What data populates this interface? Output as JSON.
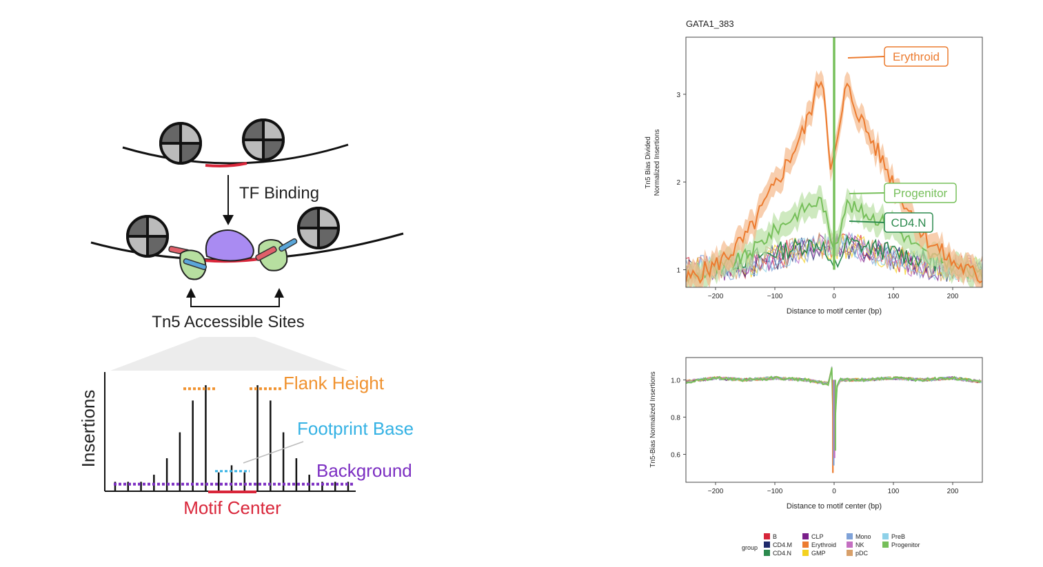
{
  "colors": {
    "erythroid": "#ec7b2f",
    "erythroid_band": "#f5b98c",
    "progenitor": "#76bf5a",
    "progenitor_band": "#b9e0a4",
    "cd4n": "#2c8a4e",
    "motif_red": "#d9263a",
    "tf_purple": "#a98bf2",
    "tn5_green": "#b7dfa0",
    "flank_orange": "#f0922f",
    "footprint_blue": "#35b2e4",
    "background_purple": "#7c2fc2"
  },
  "schematic": {
    "tf_binding_label": "TF Binding",
    "tn5_label": "Tn5 Accessible Sites",
    "insertions_label": "Insertions",
    "flank_height_label": "Flank Height",
    "footprint_base_label": "Footprint Base",
    "background_label": "Background",
    "motif_center_label": "Motif Center",
    "bar_heights": [
      0.08,
      0.08,
      0.08,
      0.14,
      0.28,
      0.5,
      0.77,
      0.9,
      0.16,
      0.22,
      0.16,
      0.9,
      0.77,
      0.5,
      0.28,
      0.14,
      0.08,
      0.08,
      0.08
    ],
    "flank_level": 0.87,
    "footprint_level": 0.17,
    "background_level": 0.06
  },
  "chart_data": [
    {
      "type": "line",
      "title": "GATA1_383",
      "xlabel": "Distance to motif center (bp)",
      "ylabel_line1": "Tn5 Bias Divided",
      "ylabel_line2": "Normalized Insertions",
      "xlim": [
        -250,
        250
      ],
      "ylim": [
        0.8,
        3.65
      ],
      "xticks": [
        -200,
        -100,
        0,
        100,
        200
      ],
      "yticks": [
        1,
        2,
        3
      ],
      "annotations": [
        "Erythroid",
        "Progenitor",
        "CD4.N"
      ],
      "series": [
        {
          "name": "Erythroid",
          "x": [
            -250,
            -200,
            -150,
            -100,
            -50,
            -20,
            -5,
            5,
            20,
            50,
            100,
            150,
            200,
            250
          ],
          "values": [
            0.88,
            1.05,
            1.35,
            1.95,
            2.6,
            3.25,
            2.15,
            2.4,
            3.1,
            2.65,
            2.0,
            1.4,
            1.08,
            0.9
          ]
        },
        {
          "name": "Progenitor",
          "x": [
            -250,
            -200,
            -150,
            -100,
            -50,
            -20,
            -5,
            5,
            20,
            50,
            100,
            150,
            200,
            250
          ],
          "values": [
            0.9,
            1.0,
            1.15,
            1.45,
            1.7,
            1.8,
            1.3,
            1.35,
            1.75,
            1.65,
            1.5,
            1.2,
            1.05,
            0.92
          ]
        },
        {
          "name": "CD4.N",
          "x": [
            -250,
            -200,
            -150,
            -100,
            -50,
            -20,
            -5,
            5,
            20,
            50,
            100,
            150,
            200,
            250
          ],
          "values": [
            0.95,
            1.05,
            1.12,
            1.2,
            1.28,
            1.3,
            1.0,
            1.05,
            1.3,
            1.27,
            1.2,
            1.12,
            1.05,
            0.95
          ]
        }
      ]
    },
    {
      "type": "line",
      "xlabel": "Distance to motif center (bp)",
      "ylabel": "Tn5-Bias Normalized Insertions",
      "xlim": [
        -250,
        250
      ],
      "ylim": [
        0.45,
        1.12
      ],
      "xticks": [
        -200,
        -100,
        0,
        100,
        200
      ],
      "yticks": [
        0.6,
        0.8,
        1.0
      ],
      "series": [
        {
          "name": "Progenitor",
          "x": [
            -250,
            -200,
            -150,
            -100,
            -50,
            -10,
            -3,
            0,
            3,
            10,
            50,
            100,
            150,
            200,
            250
          ],
          "values": [
            0.99,
            1.01,
            1.0,
            1.01,
            1.0,
            0.98,
            1.08,
            0.5,
            0.95,
            1.0,
            1.0,
            1.01,
            1.0,
            1.01,
            0.99
          ]
        }
      ]
    }
  ],
  "legend": {
    "title": "group",
    "items": [
      {
        "label": "B",
        "color": "#d7263a"
      },
      {
        "label": "CD4.M",
        "color": "#1f2a6b"
      },
      {
        "label": "CD4.N",
        "color": "#2c8a4e"
      },
      {
        "label": "CLP",
        "color": "#7a1f8a"
      },
      {
        "label": "Erythroid",
        "color": "#ec7b2f"
      },
      {
        "label": "GMP",
        "color": "#f4d21f"
      },
      {
        "label": "Mono",
        "color": "#7fa2d8"
      },
      {
        "label": "NK",
        "color": "#c46fc1"
      },
      {
        "label": "pDC",
        "color": "#d8a06a"
      },
      {
        "label": "PreB",
        "color": "#8ed1e8"
      },
      {
        "label": "Progenitor",
        "color": "#76bf5a"
      }
    ]
  }
}
